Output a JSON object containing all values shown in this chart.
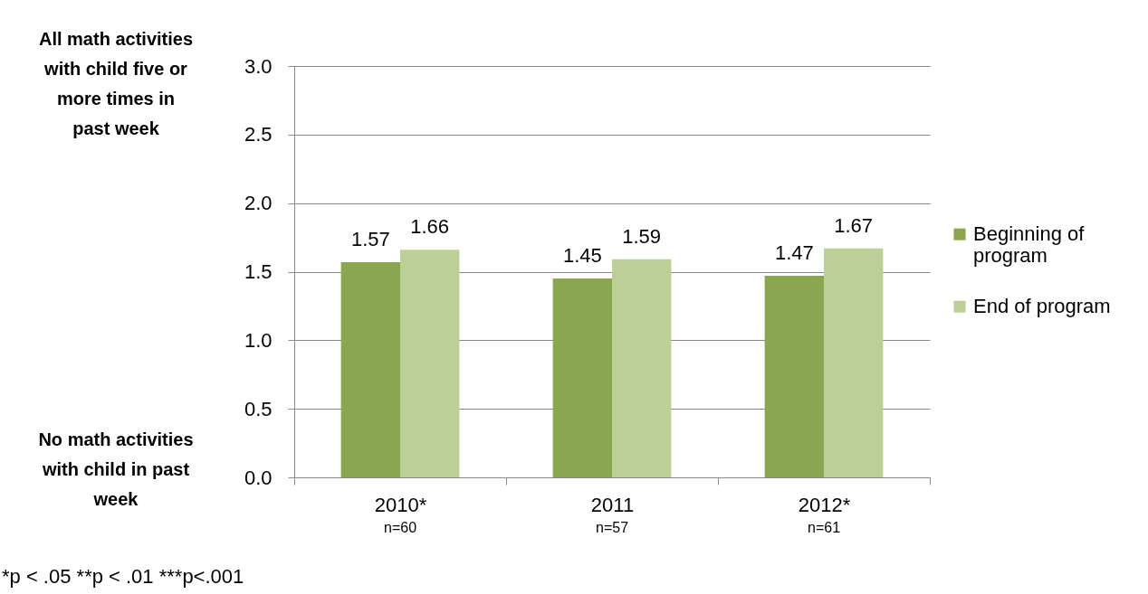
{
  "chart_data": {
    "type": "bar",
    "categories": [
      "2010*",
      "2011",
      "2012*"
    ],
    "series": [
      {
        "name": "Beginning of program",
        "color": "#8aa64f",
        "values": [
          1.57,
          1.45,
          1.47
        ]
      },
      {
        "name": "End of program",
        "color": "#bad096",
        "values": [
          1.66,
          1.59,
          1.67
        ]
      }
    ],
    "ylim": [
      0,
      3
    ],
    "yticks": [
      {
        "value": 0,
        "label": "0.0"
      },
      {
        "value": 0.5,
        "label": "0.5"
      },
      {
        "value": 1,
        "label": "1.0"
      },
      {
        "value": 1.5,
        "label": "1.5"
      },
      {
        "value": 2,
        "label": "2.0"
      },
      {
        "value": 2.5,
        "label": "2.5"
      },
      {
        "value": 3,
        "label": "3.0"
      }
    ],
    "grid": "y",
    "legend": "right",
    "data_labels": true,
    "annotations": [
      "All math activities with child five or more times in past week",
      "No math activities with child in past week",
      "n=60",
      "n=57",
      "n=61",
      "*p < .05 **p < .01 ***p<.001"
    ]
  }
}
